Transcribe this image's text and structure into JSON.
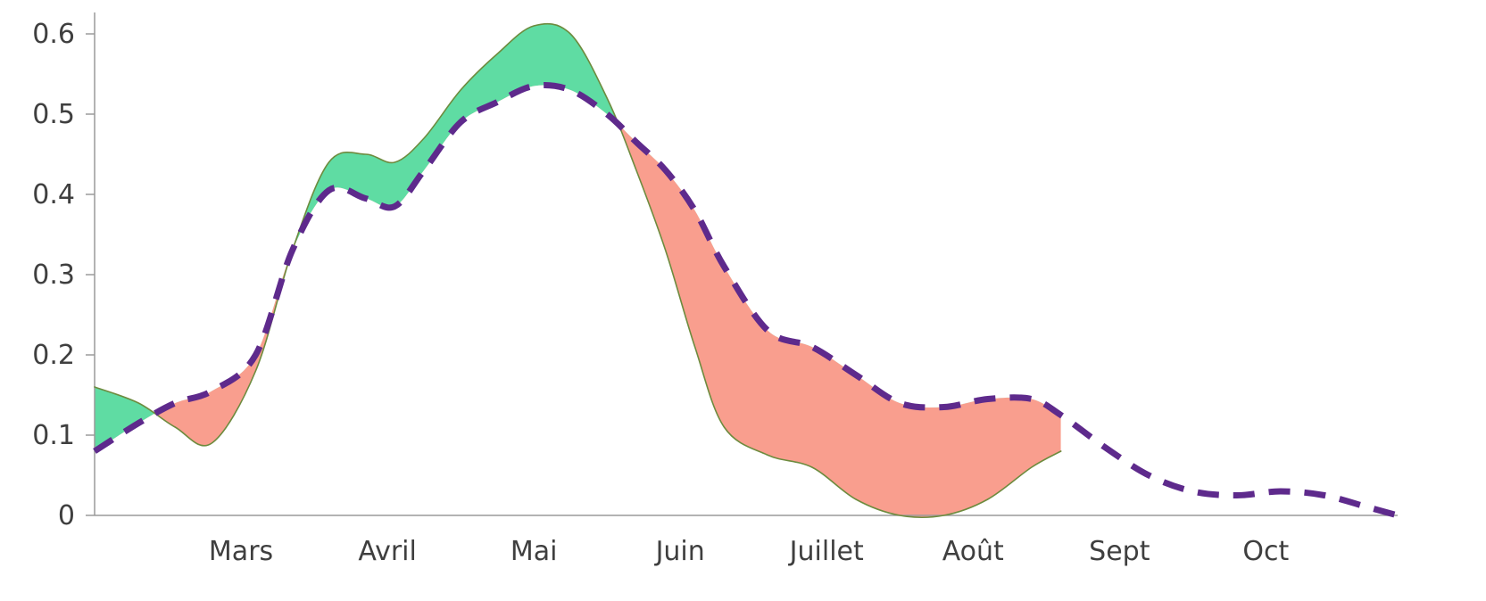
{
  "chart_data": {
    "type": "area",
    "title": "",
    "xlabel": "",
    "ylabel": "",
    "ylim": [
      0,
      0.6
    ],
    "y_ticks": [
      {
        "value": 0,
        "label": "0"
      },
      {
        "value": 0.1,
        "label": "0.1"
      },
      {
        "value": 0.2,
        "label": "0.2"
      },
      {
        "value": 0.3,
        "label": "0.3"
      },
      {
        "value": 0.4,
        "label": "0.4"
      },
      {
        "value": 0.5,
        "label": "0.5"
      },
      {
        "value": 0.6,
        "label": "0.6"
      }
    ],
    "xlim": [
      0,
      8.9
    ],
    "x_ticks": [
      {
        "value": 1,
        "label": "Mars"
      },
      {
        "value": 2,
        "label": "Avril"
      },
      {
        "value": 3,
        "label": "Mai"
      },
      {
        "value": 4,
        "label": "Juin"
      },
      {
        "value": 5,
        "label": "Juillet"
      },
      {
        "value": 6,
        "label": "Août"
      },
      {
        "value": 7,
        "label": "Sept"
      },
      {
        "value": 8,
        "label": "Oct"
      }
    ],
    "grid": false,
    "legend": "none",
    "series": [
      {
        "style": "solid",
        "x": [
          0,
          0.3,
          0.55,
          0.8,
          1.1,
          1.35,
          1.6,
          1.85,
          2.05,
          2.25,
          2.5,
          2.75,
          3.0,
          3.25,
          3.5,
          3.7,
          3.9,
          4.1,
          4.3,
          4.6,
          4.9,
          5.2,
          5.5,
          5.8,
          6.1,
          6.4,
          6.6
        ],
        "y": [
          0.16,
          0.14,
          0.11,
          0.09,
          0.18,
          0.33,
          0.44,
          0.45,
          0.44,
          0.47,
          0.53,
          0.575,
          0.61,
          0.6,
          0.52,
          0.43,
          0.33,
          0.21,
          0.11,
          0.075,
          0.06,
          0.02,
          0.0,
          0.0,
          0.02,
          0.06,
          0.08
        ]
      },
      {
        "style": "dashed",
        "x": [
          0,
          0.3,
          0.55,
          0.8,
          1.1,
          1.35,
          1.6,
          1.85,
          2.05,
          2.25,
          2.5,
          2.75,
          3.0,
          3.25,
          3.5,
          3.7,
          3.9,
          4.1,
          4.3,
          4.6,
          4.9,
          5.2,
          5.5,
          5.8,
          6.1,
          6.4,
          6.6,
          6.9,
          7.2,
          7.5,
          7.8,
          8.1,
          8.4,
          8.7,
          8.9
        ],
        "y": [
          0.08,
          0.115,
          0.14,
          0.155,
          0.2,
          0.33,
          0.405,
          0.395,
          0.385,
          0.43,
          0.49,
          0.515,
          0.535,
          0.53,
          0.5,
          0.465,
          0.43,
          0.38,
          0.31,
          0.23,
          0.21,
          0.175,
          0.14,
          0.135,
          0.145,
          0.145,
          0.125,
          0.085,
          0.05,
          0.03,
          0.025,
          0.03,
          0.025,
          0.01,
          0.0
        ]
      }
    ],
    "colors": {
      "actual_line": "#6d8b3e",
      "baseline": "#5e2a8c",
      "above_fill": "#5fdca3",
      "below_fill": "#f99e8e",
      "axis": "#9a9a9a",
      "tick_text": "#3f3f3f"
    }
  }
}
